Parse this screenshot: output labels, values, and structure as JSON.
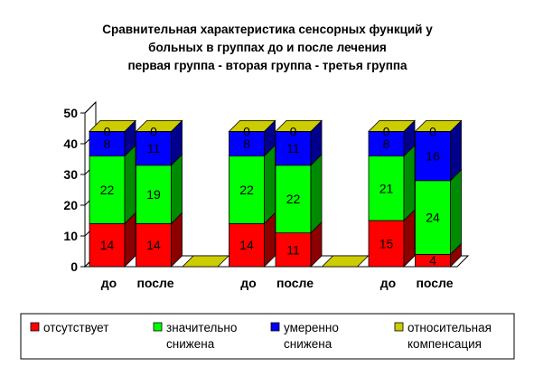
{
  "chart_data": {
    "type": "bar",
    "stacked": true,
    "three_d": true,
    "title_lines": [
      "Сравнительная характеристика сенсорных функций у",
      "больных   в  группах до и после лечения",
      "первая группа   - вторая группа  -  третья группа"
    ],
    "categories": [
      "до",
      "после",
      "",
      "до",
      "после",
      "",
      "до",
      "после"
    ],
    "ylim": [
      0,
      50
    ],
    "yticks": [
      0,
      10,
      20,
      30,
      40,
      50
    ],
    "grid": false,
    "legend_position": "bottom",
    "series": [
      {
        "name": "отсутствует",
        "color": "#ff0000",
        "values": [
          14,
          14,
          0,
          14,
          11,
          0,
          15,
          4
        ]
      },
      {
        "name": "значительно снижена",
        "color": "#00ff00",
        "values": [
          22,
          19,
          0,
          22,
          22,
          0,
          21,
          24
        ]
      },
      {
        "name": "умеренно снижена",
        "color": "#0000ff",
        "values": [
          8,
          11,
          0,
          8,
          11,
          0,
          8,
          16
        ]
      },
      {
        "name": "относительная компенсация",
        "color": "#cccc00",
        "values": [
          0,
          0,
          0,
          0,
          0,
          0,
          0,
          0
        ]
      }
    ],
    "legend": [
      {
        "lines": [
          "отсутствует"
        ],
        "color": "#ff0000"
      },
      {
        "lines": [
          "значительно",
          "снижена"
        ],
        "color": "#00ff00"
      },
      {
        "lines": [
          "умеренно",
          "снижена"
        ],
        "color": "#0000ff"
      },
      {
        "lines": [
          "относительная",
          "компенсация"
        ],
        "color": "#cccc00"
      }
    ]
  }
}
